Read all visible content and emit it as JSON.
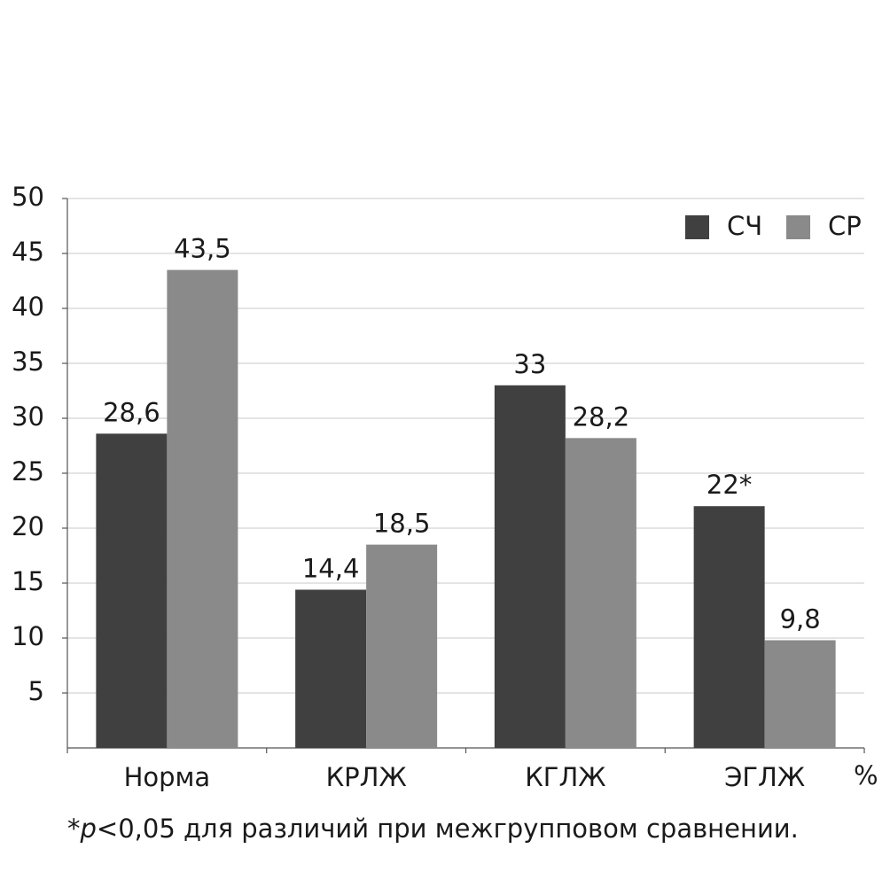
{
  "chart_data": {
    "type": "bar",
    "categories": [
      "Норма",
      "КРЛЖ",
      "КГЛЖ",
      "ЭГЛЖ"
    ],
    "series": [
      {
        "name": "СЧ",
        "color": "#404040",
        "values": [
          28.6,
          14.4,
          33,
          22
        ],
        "value_labels": [
          "28,6",
          "14,4",
          "33",
          "22*"
        ]
      },
      {
        "name": "СР",
        "color": "#8a8a8a",
        "values": [
          43.5,
          18.5,
          28.2,
          9.8
        ],
        "value_labels": [
          "43,5",
          "18,5",
          "28,2",
          "9,8"
        ]
      }
    ],
    "ylim": [
      0,
      50
    ],
    "yticks": [
      5,
      10,
      15,
      20,
      25,
      30,
      35,
      40,
      45,
      50
    ],
    "grid": true,
    "legend": "top-right",
    "unit": "%",
    "note": [
      "*",
      "p",
      "<0,05 для различий при межгрупповом сравнении."
    ]
  }
}
